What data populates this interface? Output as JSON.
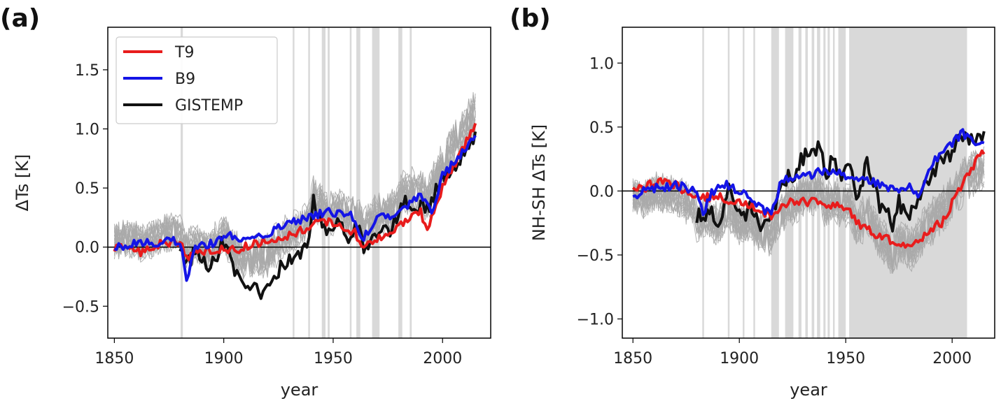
{
  "chart_data": [
    {
      "id": "a",
      "panel_label": "(a)",
      "type": "line",
      "title": "",
      "xlabel": "year",
      "ylabel": "ΔTs [K]",
      "xlim": [
        1847,
        2022
      ],
      "ylim": [
        -0.77,
        1.86
      ],
      "xticks": [
        1850,
        1900,
        1950,
        2000
      ],
      "xtick_labels": [
        "1850",
        "1900",
        "1950",
        "2000"
      ],
      "yticks": [
        -0.5,
        0.0,
        0.5,
        1.0,
        1.5
      ],
      "ytick_labels": [
        "−0.5",
        "0.0",
        "0.5",
        "1.0",
        "1.5"
      ],
      "zero_line": true,
      "legend": {
        "position": "top-left",
        "entries": [
          "T9",
          "B9",
          "GISTEMP"
        ]
      },
      "shaded_years": [
        [
          1880.3,
          1881.3
        ],
        [
          1931.5,
          1932.3
        ],
        [
          1938.6,
          1939.4
        ],
        [
          1944.8,
          1946.5
        ],
        [
          1947.5,
          1948.4
        ],
        [
          1957.6,
          1958.4
        ],
        [
          1960.6,
          1962.4
        ],
        [
          1967.8,
          1971.2
        ],
        [
          1979.8,
          1981.6
        ],
        [
          1985.0,
          1985.9
        ]
      ],
      "ensemble": {
        "count": 20,
        "color": "#aaaaaa",
        "start": 1850,
        "end": 2015,
        "t9_spread": 0.22,
        "gis_spread": 0.16
      },
      "series": [
        {
          "name": "T9",
          "color": "#e81c1c",
          "start": 1850,
          "end": 2015,
          "keypoints": [
            [
              1850,
              -0.02
            ],
            [
              1858,
              0.0
            ],
            [
              1862,
              -0.05
            ],
            [
              1870,
              0.02
            ],
            [
              1880,
              0.05
            ],
            [
              1883,
              -0.08
            ],
            [
              1890,
              -0.04
            ],
            [
              1900,
              -0.01
            ],
            [
              1905,
              -0.03
            ],
            [
              1912,
              0.02
            ],
            [
              1920,
              0.05
            ],
            [
              1930,
              0.1
            ],
            [
              1940,
              0.18
            ],
            [
              1945,
              0.22
            ],
            [
              1950,
              0.2
            ],
            [
              1960,
              0.12
            ],
            [
              1963,
              0.02
            ],
            [
              1970,
              0.06
            ],
            [
              1975,
              0.1
            ],
            [
              1980,
              0.18
            ],
            [
              1990,
              0.3
            ],
            [
              1993,
              0.15
            ],
            [
              2000,
              0.5
            ],
            [
              2010,
              0.85
            ],
            [
              2015,
              1.06
            ]
          ]
        },
        {
          "name": "B9",
          "color": "#1414e6",
          "start": 1850,
          "end": 2015,
          "keypoints": [
            [
              1850,
              0.0
            ],
            [
              1860,
              0.03
            ],
            [
              1870,
              0.04
            ],
            [
              1880,
              0.06
            ],
            [
              1883,
              -0.28
            ],
            [
              1887,
              0.0
            ],
            [
              1895,
              0.03
            ],
            [
              1903,
              0.1
            ],
            [
              1906,
              0.05
            ],
            [
              1912,
              0.1
            ],
            [
              1920,
              0.12
            ],
            [
              1930,
              0.2
            ],
            [
              1940,
              0.25
            ],
            [
              1946,
              0.3
            ],
            [
              1955,
              0.28
            ],
            [
              1960,
              0.25
            ],
            [
              1963,
              0.05
            ],
            [
              1970,
              0.25
            ],
            [
              1980,
              0.28
            ],
            [
              1990,
              0.45
            ],
            [
              1995,
              0.3
            ],
            [
              2000,
              0.6
            ],
            [
              2010,
              0.82
            ],
            [
              2015,
              0.97
            ]
          ]
        },
        {
          "name": "GISTEMP",
          "color": "#111111",
          "start": 1880,
          "end": 2015,
          "keypoints": [
            [
              1880,
              0.0
            ],
            [
              1883,
              -0.12
            ],
            [
              1887,
              -0.05
            ],
            [
              1893,
              -0.2
            ],
            [
              1900,
              0.05
            ],
            [
              1904,
              -0.18
            ],
            [
              1909,
              -0.38
            ],
            [
              1915,
              -0.35
            ],
            [
              1918,
              -0.43
            ],
            [
              1925,
              -0.2
            ],
            [
              1930,
              -0.1
            ],
            [
              1935,
              -0.05
            ],
            [
              1939,
              0.05
            ],
            [
              1941,
              0.4
            ],
            [
              1944,
              0.25
            ],
            [
              1948,
              0.1
            ],
            [
              1953,
              0.2
            ],
            [
              1957,
              0.1
            ],
            [
              1962,
              0.15
            ],
            [
              1964,
              -0.05
            ],
            [
              1968,
              0.1
            ],
            [
              1972,
              0.2
            ],
            [
              1977,
              0.15
            ],
            [
              1982,
              0.4
            ],
            [
              1988,
              0.35
            ],
            [
              1992,
              0.3
            ],
            [
              1998,
              0.5
            ],
            [
              2005,
              0.7
            ],
            [
              2010,
              0.78
            ],
            [
              2015,
              0.92
            ]
          ]
        }
      ]
    },
    {
      "id": "b",
      "panel_label": "(b)",
      "type": "line",
      "title": "",
      "xlabel": "year",
      "ylabel": "NH-SH ΔTs [K]",
      "xlim": [
        1845,
        2020
      ],
      "ylim": [
        -1.15,
        1.28
      ],
      "xticks": [
        1850,
        1900,
        1950,
        2000
      ],
      "xtick_labels": [
        "1850",
        "1900",
        "1950",
        "2000"
      ],
      "yticks": [
        -1.0,
        -0.5,
        0.0,
        0.5,
        1.0
      ],
      "ytick_labels": [
        "−1.0",
        "−0.5",
        "0.0",
        "0.5",
        "1.0"
      ],
      "zero_line": true,
      "shaded_years": [
        [
          1882.6,
          1883.4
        ],
        [
          1894.6,
          1895.4
        ],
        [
          1901.6,
          1902.4
        ],
        [
          1906.6,
          1907.4
        ],
        [
          1915.0,
          1918.6
        ],
        [
          1921.5,
          1925.4
        ],
        [
          1927.8,
          1929.2
        ],
        [
          1931.0,
          1932.2
        ],
        [
          1934.0,
          1935.2
        ],
        [
          1936.5,
          1938.0
        ],
        [
          1939.5,
          1940.5
        ],
        [
          1941.5,
          1942.5
        ],
        [
          1944.0,
          1944.8
        ],
        [
          1946.5,
          1950.0
        ],
        [
          1951.6,
          2007.0
        ]
      ],
      "ensemble": {
        "count": 20,
        "color": "#aaaaaa",
        "start": 1850,
        "end": 2015,
        "t9_spread": 0.18,
        "gis_spread": 0.22
      },
      "series": [
        {
          "name": "T9",
          "color": "#e81c1c",
          "start": 1850,
          "end": 2015,
          "keypoints": [
            [
              1850,
              0.04
            ],
            [
              1855,
              0.02
            ],
            [
              1860,
              0.07
            ],
            [
              1870,
              0.05
            ],
            [
              1875,
              0.0
            ],
            [
              1880,
              -0.05
            ],
            [
              1890,
              -0.05
            ],
            [
              1900,
              -0.08
            ],
            [
              1905,
              -0.1
            ],
            [
              1910,
              -0.15
            ],
            [
              1915,
              -0.2
            ],
            [
              1920,
              -0.1
            ],
            [
              1930,
              -0.08
            ],
            [
              1940,
              -0.1
            ],
            [
              1950,
              -0.12
            ],
            [
              1955,
              -0.25
            ],
            [
              1960,
              -0.3
            ],
            [
              1970,
              -0.38
            ],
            [
              1980,
              -0.42
            ],
            [
              1985,
              -0.38
            ],
            [
              1990,
              -0.3
            ],
            [
              1995,
              -0.25
            ],
            [
              2000,
              -0.1
            ],
            [
              2005,
              0.05
            ],
            [
              2010,
              0.2
            ],
            [
              2015,
              0.32
            ]
          ]
        },
        {
          "name": "B9",
          "color": "#1414e6",
          "start": 1850,
          "end": 2015,
          "keypoints": [
            [
              1850,
              -0.03
            ],
            [
              1860,
              0.02
            ],
            [
              1870,
              0.05
            ],
            [
              1880,
              0.0
            ],
            [
              1883,
              -0.2
            ],
            [
              1887,
              0.0
            ],
            [
              1895,
              0.05
            ],
            [
              1900,
              0.0
            ],
            [
              1905,
              -0.05
            ],
            [
              1912,
              -0.15
            ],
            [
              1915,
              -0.2
            ],
            [
              1920,
              0.1
            ],
            [
              1930,
              0.12
            ],
            [
              1940,
              0.15
            ],
            [
              1950,
              0.12
            ],
            [
              1960,
              0.1
            ],
            [
              1970,
              0.02
            ],
            [
              1975,
              0.0
            ],
            [
              1980,
              0.05
            ],
            [
              1985,
              -0.05
            ],
            [
              1990,
              0.2
            ],
            [
              2000,
              0.38
            ],
            [
              2005,
              0.45
            ],
            [
              2010,
              0.4
            ],
            [
              2015,
              0.35
            ]
          ]
        },
        {
          "name": "GISTEMP",
          "color": "#111111",
          "start": 1880,
          "end": 2015,
          "keypoints": [
            [
              1880,
              -0.22
            ],
            [
              1885,
              -0.15
            ],
            [
              1890,
              -0.25
            ],
            [
              1895,
              0.0
            ],
            [
              1900,
              -0.2
            ],
            [
              1905,
              -0.15
            ],
            [
              1910,
              -0.25
            ],
            [
              1914,
              -0.3
            ],
            [
              1918,
              -0.05
            ],
            [
              1922,
              0.1
            ],
            [
              1926,
              0.15
            ],
            [
              1930,
              0.25
            ],
            [
              1935,
              0.3
            ],
            [
              1938,
              0.38
            ],
            [
              1940,
              0.1
            ],
            [
              1944,
              0.25
            ],
            [
              1948,
              0.15
            ],
            [
              1952,
              0.2
            ],
            [
              1955,
              -0.05
            ],
            [
              1960,
              0.2
            ],
            [
              1963,
              0.05
            ],
            [
              1967,
              -0.15
            ],
            [
              1970,
              -0.2
            ],
            [
              1972,
              -0.3
            ],
            [
              1975,
              -0.1
            ],
            [
              1980,
              -0.2
            ],
            [
              1985,
              -0.05
            ],
            [
              1990,
              0.1
            ],
            [
              1995,
              0.25
            ],
            [
              2000,
              0.3
            ],
            [
              2005,
              0.45
            ],
            [
              2010,
              0.42
            ],
            [
              2015,
              0.4
            ]
          ]
        }
      ]
    }
  ]
}
